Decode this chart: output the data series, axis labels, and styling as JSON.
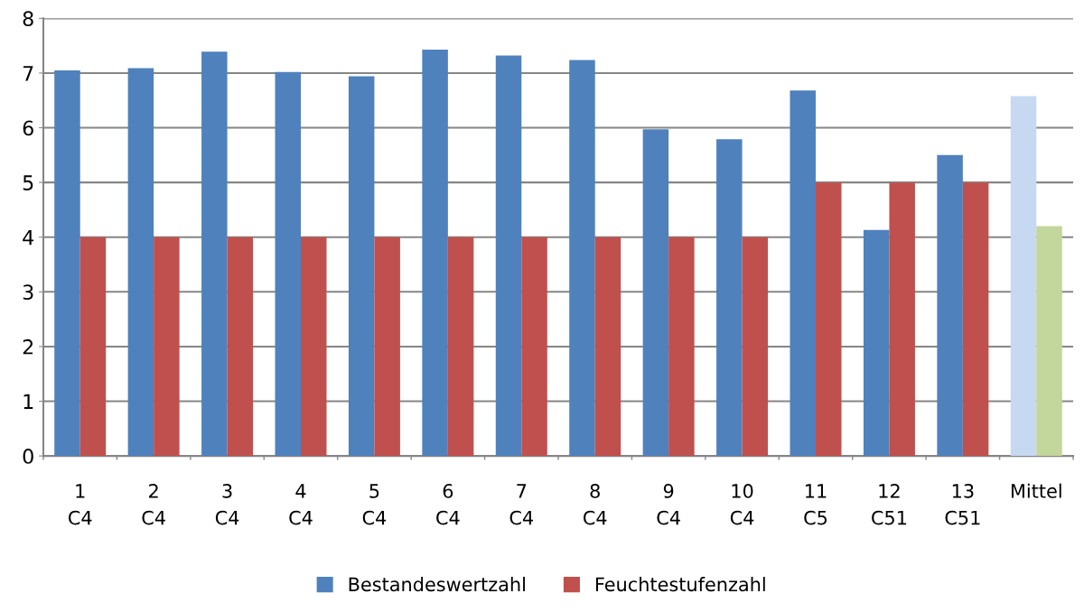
{
  "chart_data": {
    "type": "bar",
    "categories": [
      "1\nC4",
      "2\nC4",
      "3\nC4",
      "4\nC4",
      "5\nC4",
      "6\nC4",
      "7\nC4",
      "8\nC4",
      "9\nC4",
      "10\nC4",
      "11\nC5",
      "12\nC51",
      "13\nC51",
      "Mittel"
    ],
    "series": [
      {
        "name": "Bestandeswertzahl",
        "color": "#4f81bd",
        "colors": [
          "#4f81bd",
          "#4f81bd",
          "#4f81bd",
          "#4f81bd",
          "#4f81bd",
          "#4f81bd",
          "#4f81bd",
          "#4f81bd",
          "#4f81bd",
          "#4f81bd",
          "#4f81bd",
          "#4f81bd",
          "#4f81bd",
          "#c6d9f1"
        ],
        "values": [
          7.05,
          7.09,
          7.39,
          7.02,
          6.94,
          7.43,
          7.32,
          7.24,
          5.97,
          5.79,
          6.68,
          4.13,
          5.5,
          6.58
        ]
      },
      {
        "name": "Feuchtestufenzahl",
        "color": "#c0504d",
        "colors": [
          "#c0504d",
          "#c0504d",
          "#c0504d",
          "#c0504d",
          "#c0504d",
          "#c0504d",
          "#c0504d",
          "#c0504d",
          "#c0504d",
          "#c0504d",
          "#c0504d",
          "#c0504d",
          "#c0504d",
          "#c3d69b"
        ],
        "values": [
          4,
          4,
          4,
          4,
          4,
          4,
          4,
          4,
          4,
          4,
          5,
          5,
          5,
          4.2
        ]
      }
    ],
    "ylim": [
      0,
      8
    ],
    "yticks": [
      0,
      1,
      2,
      3,
      4,
      5,
      6,
      7,
      8
    ],
    "grid": "y",
    "legend": "bottom"
  }
}
